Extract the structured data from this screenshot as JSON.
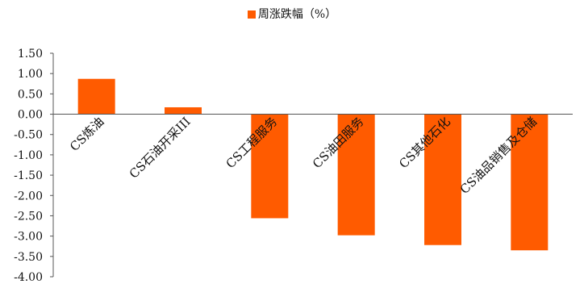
{
  "chart_data": {
    "type": "bar",
    "legend": {
      "label": "周涨跌幅（%）",
      "position": "top-center"
    },
    "categories": [
      "CS炼油",
      "CS石油开采III",
      "CS工程服务",
      "CS油田服务",
      "CS其他石化",
      "CS油品销售及仓储"
    ],
    "series": [
      {
        "name": "周涨跌幅（%）",
        "values": [
          0.87,
          0.17,
          -2.56,
          -2.98,
          -3.22,
          -3.35
        ]
      }
    ],
    "ylim": [
      -4.0,
      1.5
    ],
    "ytick_step": 0.5,
    "ytick_labels": [
      "1.50",
      "1.00",
      "0.50",
      "0.00",
      "-0.50",
      "-1.00",
      "-1.50",
      "-2.00",
      "-2.50",
      "-3.00",
      "-3.50",
      "-4.00"
    ],
    "grid": false,
    "bar_color": "#FF5B00"
  }
}
